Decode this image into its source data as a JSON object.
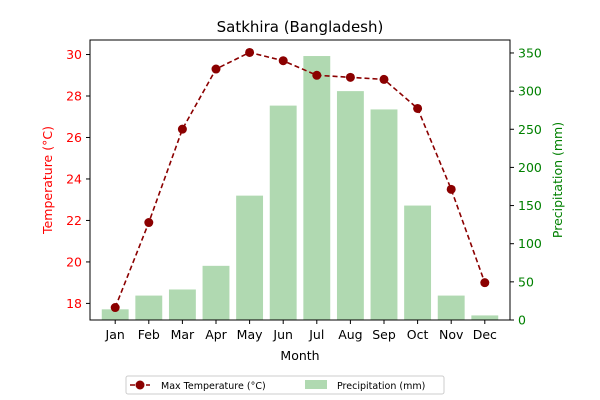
{
  "chart_data": {
    "type": "bar",
    "title": "Satkhira (Bangladesh)",
    "xlabel": "Month",
    "categories": [
      "Jan",
      "Feb",
      "Mar",
      "Apr",
      "May",
      "Jun",
      "Jul",
      "Aug",
      "Sep",
      "Oct",
      "Nov",
      "Dec"
    ],
    "series": [
      {
        "name": "Max Temperature (°C)",
        "type": "line",
        "axis": "left",
        "color": "#8b0000",
        "values": [
          17.8,
          21.9,
          26.4,
          29.3,
          30.1,
          29.7,
          29.0,
          28.9,
          28.8,
          27.4,
          23.5,
          19.0
        ]
      },
      {
        "name": "Precipitation (mm)",
        "type": "bar",
        "axis": "right",
        "color": "#b0d9b1",
        "values": [
          14,
          32,
          40,
          71,
          163,
          281,
          346,
          300,
          276,
          150,
          32,
          6
        ]
      }
    ],
    "y_left": {
      "label": "Temperature (°C)",
      "color": "#ff0000",
      "ticks": [
        "18",
        "20",
        "22",
        "24",
        "26",
        "28",
        "30"
      ],
      "ylim": [
        17.2,
        30.7
      ]
    },
    "y_right": {
      "label": "Precipitation (mm)",
      "color": "#008000",
      "ticks": [
        "0",
        "50",
        "100",
        "150",
        "200",
        "250",
        "300",
        "350"
      ],
      "ylim": [
        0,
        367
      ]
    },
    "legend_position": "bottom-center"
  }
}
